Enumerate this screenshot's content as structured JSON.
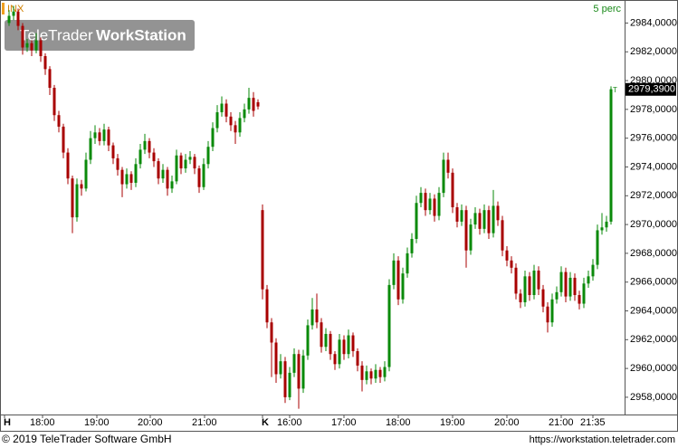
{
  "chart_data": {
    "type": "candlestick",
    "symbol": "INX",
    "period": "5 perc",
    "watermark": {
      "brand": "TeleTrader",
      "product": "WorkStation"
    },
    "last_price": {
      "value": 2979.39,
      "label": "2979,3900"
    },
    "last_marker": "T",
    "footer_left": "© 2019 TeleTrader Software GmbH",
    "footer_right": "https://workstation.teletrader.com",
    "up_color": "#0a8a0a",
    "down_color": "#a80000",
    "xlim": [
      -2,
      136
    ],
    "xticks": [
      {
        "value": -1,
        "label": "H"
      },
      {
        "value": 7.4,
        "label": "18:00"
      },
      {
        "value": 19.4,
        "label": "19:00"
      },
      {
        "value": 31.2,
        "label": "20:00"
      },
      {
        "value": 43.2,
        "label": "21:00"
      },
      {
        "value": 56,
        "label": "K"
      },
      {
        "value": 62,
        "label": "16:00"
      },
      {
        "value": 74,
        "label": "17:00"
      },
      {
        "value": 86,
        "label": "18:00"
      },
      {
        "value": 98,
        "label": "19:00"
      },
      {
        "value": 110,
        "label": "20:00"
      },
      {
        "value": 122,
        "label": "21:00"
      },
      {
        "value": 129,
        "label": "21:35"
      }
    ],
    "ylim": [
      2956.8,
      2985.6
    ],
    "yticks": [
      {
        "value": 2958,
        "label": "2958,0000"
      },
      {
        "value": 2960,
        "label": "2960,0000"
      },
      {
        "value": 2962,
        "label": "2962,0000"
      },
      {
        "value": 2964,
        "label": "2964,0000"
      },
      {
        "value": 2966,
        "label": "2966,0000"
      },
      {
        "value": 2968,
        "label": "2968,0000"
      },
      {
        "value": 2970,
        "label": "2970,0000"
      },
      {
        "value": 2972,
        "label": "2972,0000"
      },
      {
        "value": 2974,
        "label": "2974,0000"
      },
      {
        "value": 2976,
        "label": "2976,0000"
      },
      {
        "value": 2978,
        "label": "2978,0000"
      },
      {
        "value": 2980,
        "label": "2980,0000"
      },
      {
        "value": 2982,
        "label": "2982,0000"
      },
      {
        "value": 2984,
        "label": "2984,0000"
      }
    ],
    "ohlc": [
      [
        2984.0,
        2984.9,
        2983.8,
        2984.5
      ],
      [
        2984.5,
        2985.2,
        2984.2,
        2984.8
      ],
      [
        2984.8,
        2985.0,
        2983.5,
        2983.8
      ],
      [
        2983.8,
        2984.0,
        2981.8,
        2982.3
      ],
      [
        2982.3,
        2982.9,
        2982.0,
        2982.6
      ],
      [
        2982.6,
        2982.8,
        2981.7,
        2982.1
      ],
      [
        2982.1,
        2983.3,
        2981.9,
        2982.8
      ],
      [
        2982.8,
        2983.0,
        2981.3,
        2981.7
      ],
      [
        2981.7,
        2981.9,
        2980.4,
        2980.8
      ],
      [
        2980.8,
        2981.0,
        2979.0,
        2979.5
      ],
      [
        2979.5,
        2979.7,
        2977.2,
        2977.6
      ],
      [
        2977.6,
        2977.9,
        2976.4,
        2976.8
      ],
      [
        2976.8,
        2977.0,
        2974.6,
        2975.0
      ],
      [
        2975.0,
        2975.3,
        2972.8,
        2973.2
      ],
      [
        2973.2,
        2973.4,
        2969.4,
        2970.5
      ],
      [
        2970.5,
        2973.2,
        2970.2,
        2972.8
      ],
      [
        2972.8,
        2973.1,
        2972.0,
        2972.5
      ],
      [
        2972.5,
        2975.0,
        2972.3,
        2974.5
      ],
      [
        2974.5,
        2976.5,
        2974.2,
        2976.0
      ],
      [
        2976.0,
        2976.9,
        2975.6,
        2976.4
      ],
      [
        2976.4,
        2976.7,
        2975.5,
        2975.8
      ],
      [
        2975.8,
        2977.0,
        2975.5,
        2976.6
      ],
      [
        2976.6,
        2976.8,
        2975.1,
        2975.5
      ],
      [
        2975.5,
        2975.7,
        2974.2,
        2974.6
      ],
      [
        2974.6,
        2974.9,
        2973.4,
        2973.8
      ],
      [
        2973.8,
        2974.0,
        2971.9,
        2972.8
      ],
      [
        2972.8,
        2973.9,
        2972.5,
        2973.5
      ],
      [
        2973.5,
        2973.7,
        2972.4,
        2972.9
      ],
      [
        2972.9,
        2974.6,
        2972.6,
        2974.2
      ],
      [
        2974.2,
        2975.6,
        2973.9,
        2975.2
      ],
      [
        2975.2,
        2976.3,
        2974.9,
        2975.8
      ],
      [
        2975.8,
        2976.0,
        2974.6,
        2975.0
      ],
      [
        2975.0,
        2975.3,
        2974.0,
        2974.4
      ],
      [
        2974.4,
        2974.6,
        2972.8,
        2973.2
      ],
      [
        2973.2,
        2974.2,
        2972.9,
        2973.8
      ],
      [
        2973.8,
        2974.0,
        2972.0,
        2972.5
      ],
      [
        2972.5,
        2973.4,
        2972.2,
        2973.0
      ],
      [
        2973.0,
        2975.2,
        2972.8,
        2974.8
      ],
      [
        2974.8,
        2975.0,
        2973.5,
        2973.9
      ],
      [
        2973.9,
        2974.9,
        2973.6,
        2974.5
      ],
      [
        2974.5,
        2975.1,
        2974.2,
        2974.7
      ],
      [
        2974.7,
        2974.9,
        2973.5,
        2973.9
      ],
      [
        2973.9,
        2974.1,
        2972.2,
        2972.6
      ],
      [
        2972.6,
        2974.6,
        2972.4,
        2974.2
      ],
      [
        2974.2,
        2975.8,
        2973.9,
        2975.4
      ],
      [
        2975.4,
        2977.1,
        2975.1,
        2976.7
      ],
      [
        2976.7,
        2978.3,
        2976.4,
        2977.8
      ],
      [
        2977.8,
        2978.9,
        2977.5,
        2978.4
      ],
      [
        2978.4,
        2978.7,
        2977.1,
        2977.5
      ],
      [
        2977.5,
        2977.8,
        2976.5,
        2976.9
      ],
      [
        2976.9,
        2977.2,
        2975.6,
        2976.4
      ],
      [
        2976.4,
        2977.8,
        2976.1,
        2977.4
      ],
      [
        2977.4,
        2978.4,
        2977.1,
        2978.0
      ],
      [
        2978.0,
        2979.5,
        2977.7,
        2978.8
      ],
      [
        2978.8,
        2979.2,
        2977.5,
        2977.9
      ],
      [
        2978.5,
        2978.7,
        2978.0,
        2978.2
      ],
      [
        2971.0,
        2971.4,
        2964.8,
        2965.5
      ],
      [
        2965.5,
        2965.8,
        2962.8,
        2963.2
      ],
      [
        2963.2,
        2963.5,
        2959.4,
        2961.8
      ],
      [
        2961.8,
        2962.1,
        2959.0,
        2959.6
      ],
      [
        2959.6,
        2961.0,
        2959.3,
        2960.5
      ],
      [
        2960.5,
        2960.8,
        2957.6,
        2958.0
      ],
      [
        2958.0,
        2960.1,
        2957.8,
        2959.7
      ],
      [
        2959.7,
        2961.4,
        2959.4,
        2961.0
      ],
      [
        2961.0,
        2961.3,
        2957.2,
        2958.6
      ],
      [
        2958.6,
        2961.3,
        2958.3,
        2960.9
      ],
      [
        2960.9,
        2963.4,
        2960.6,
        2963.0
      ],
      [
        2963.0,
        2964.9,
        2962.7,
        2964.1
      ],
      [
        2964.1,
        2965.2,
        2962.8,
        2963.2
      ],
      [
        2963.2,
        2963.5,
        2961.1,
        2961.5
      ],
      [
        2961.5,
        2962.8,
        2961.2,
        2962.4
      ],
      [
        2962.4,
        2962.6,
        2960.6,
        2961.0
      ],
      [
        2961.0,
        2961.2,
        2959.9,
        2960.3
      ],
      [
        2960.3,
        2962.4,
        2960.0,
        2962.0
      ],
      [
        2962.0,
        2962.3,
        2960.6,
        2961.0
      ],
      [
        2961.0,
        2962.7,
        2960.7,
        2962.3
      ],
      [
        2962.3,
        2962.5,
        2960.8,
        2961.2
      ],
      [
        2961.2,
        2961.4,
        2959.8,
        2960.2
      ],
      [
        2960.2,
        2960.5,
        2958.4,
        2959.2
      ],
      [
        2959.2,
        2960.2,
        2958.9,
        2959.8
      ],
      [
        2959.8,
        2960.0,
        2958.9,
        2959.3
      ],
      [
        2959.3,
        2960.3,
        2959.0,
        2959.9
      ],
      [
        2959.9,
        2960.1,
        2959.0,
        2959.4
      ],
      [
        2959.4,
        2960.5,
        2959.1,
        2960.1
      ],
      [
        2960.1,
        2966.2,
        2959.8,
        2965.8
      ],
      [
        2965.8,
        2968.0,
        2965.5,
        2967.5
      ],
      [
        2967.5,
        2967.8,
        2964.4,
        2964.8
      ],
      [
        2964.8,
        2967.0,
        2964.5,
        2966.6
      ],
      [
        2966.6,
        2968.4,
        2966.3,
        2968.0
      ],
      [
        2968.0,
        2969.4,
        2967.7,
        2969.0
      ],
      [
        2969.0,
        2972.0,
        2968.7,
        2971.5
      ],
      [
        2971.5,
        2972.6,
        2971.2,
        2972.2
      ],
      [
        2972.2,
        2972.5,
        2970.6,
        2971.0
      ],
      [
        2971.0,
        2972.2,
        2970.7,
        2971.8
      ],
      [
        2971.8,
        2972.1,
        2970.2,
        2970.6
      ],
      [
        2970.6,
        2972.6,
        2970.3,
        2972.2
      ],
      [
        2972.2,
        2975.0,
        2971.9,
        2974.5
      ],
      [
        2974.5,
        2975.0,
        2973.2,
        2973.6
      ],
      [
        2973.6,
        2973.9,
        2970.8,
        2971.2
      ],
      [
        2971.2,
        2971.5,
        2969.8,
        2970.2
      ],
      [
        2970.2,
        2971.4,
        2969.9,
        2971.0
      ],
      [
        2971.0,
        2971.3,
        2967.0,
        2968.2
      ],
      [
        2968.2,
        2970.4,
        2967.9,
        2970.0
      ],
      [
        2970.0,
        2971.2,
        2969.7,
        2970.8
      ],
      [
        2970.8,
        2971.1,
        2969.3,
        2969.7
      ],
      [
        2969.7,
        2971.4,
        2969.4,
        2971.0
      ],
      [
        2971.0,
        2971.3,
        2969.0,
        2969.4
      ],
      [
        2969.4,
        2972.4,
        2969.1,
        2971.3
      ],
      [
        2971.3,
        2971.6,
        2969.9,
        2970.3
      ],
      [
        2970.3,
        2970.6,
        2967.8,
        2968.2
      ],
      [
        2968.2,
        2968.5,
        2967.1,
        2967.5
      ],
      [
        2967.5,
        2967.8,
        2966.6,
        2967.0
      ],
      [
        2967.0,
        2967.3,
        2964.8,
        2965.2
      ],
      [
        2965.2,
        2965.5,
        2964.2,
        2964.6
      ],
      [
        2964.6,
        2966.8,
        2964.3,
        2966.4
      ],
      [
        2966.4,
        2966.7,
        2964.7,
        2965.1
      ],
      [
        2965.1,
        2967.2,
        2964.8,
        2966.8
      ],
      [
        2966.8,
        2967.1,
        2965.1,
        2965.5
      ],
      [
        2965.5,
        2965.8,
        2963.9,
        2964.3
      ],
      [
        2964.3,
        2964.6,
        2962.5,
        2963.2
      ],
      [
        2963.2,
        2965.2,
        2962.9,
        2964.8
      ],
      [
        2964.8,
        2965.7,
        2964.5,
        2965.3
      ],
      [
        2965.3,
        2967.1,
        2965.0,
        2966.7
      ],
      [
        2966.7,
        2967.0,
        2964.6,
        2965.0
      ],
      [
        2965.0,
        2966.7,
        2964.7,
        2966.3
      ],
      [
        2966.3,
        2966.6,
        2964.7,
        2965.1
      ],
      [
        2965.1,
        2965.4,
        2964.1,
        2964.5
      ],
      [
        2964.5,
        2966.3,
        2964.2,
        2965.9
      ],
      [
        2965.9,
        2966.8,
        2965.6,
        2966.4
      ],
      [
        2966.4,
        2967.6,
        2966.1,
        2967.2
      ],
      [
        2967.2,
        2970.0,
        2966.9,
        2969.6
      ],
      [
        2969.6,
        2970.8,
        2969.3,
        2969.8
      ],
      [
        2969.8,
        2970.6,
        2969.5,
        2970.2
      ],
      [
        2970.2,
        2979.6,
        2970.0,
        2979.4
      ]
    ]
  }
}
